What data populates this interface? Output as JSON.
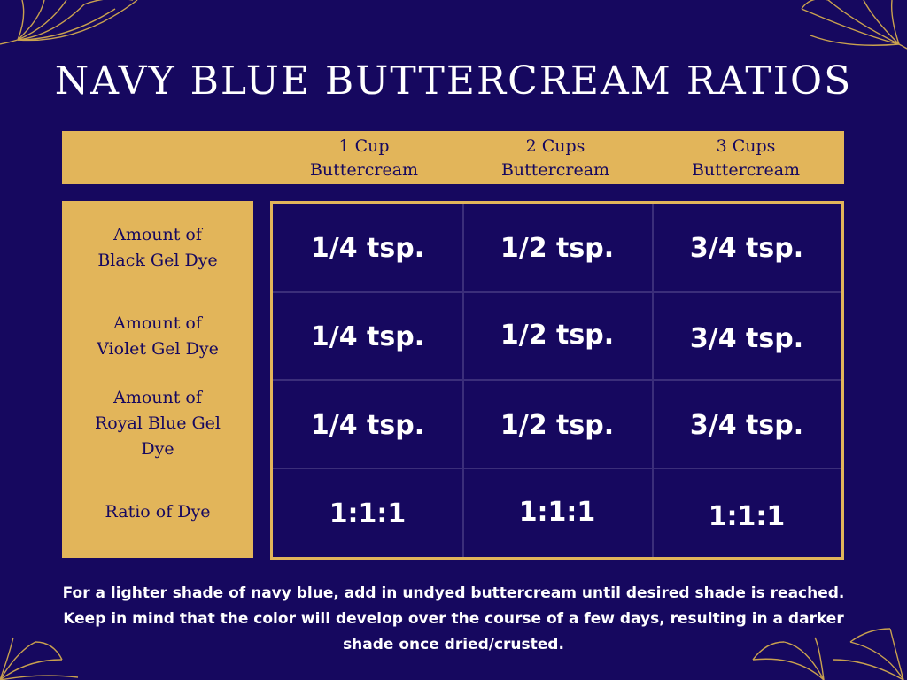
{
  "title": "NAVY BLUE BUTTERCREAM RATIOS",
  "columns": [
    "1 Cup\nButtercream",
    "2 Cups\nButtercream",
    "3 Cups\nButtercream"
  ],
  "rows": [
    {
      "label": "Amount of\nBlack Gel Dye",
      "cells": [
        "1/4 tsp.",
        "1/2 tsp.",
        "3/4 tsp."
      ]
    },
    {
      "label": "Amount of\nViolet Gel Dye",
      "cells": [
        "1/4 tsp.",
        "1/2 tsp.",
        "3/4 tsp."
      ]
    },
    {
      "label": "Amount of\nRoyal Blue Gel\nDye",
      "cells": [
        "1/4 tsp.",
        "1/2 tsp.",
        "3/4 tsp."
      ]
    },
    {
      "label": "Ratio of Dye",
      "cells": [
        "1:1:1",
        "1:1:1",
        "1:1:1"
      ]
    }
  ],
  "note": "For a lighter shade of navy blue, add in undyed buttercream until desired shade is reached. Keep in mind that the color will develop over the course of a few days, resulting in a darker shade once dried/crusted.",
  "colors": {
    "background": "#16085f",
    "gold": "#e2b55a",
    "text": "#ffffff",
    "grid_line": "#3b2e7a"
  },
  "decorations": [
    "ginkgo-leaf-icon",
    "ginkgo-leaf-icon",
    "ginkgo-leaf-icon",
    "ginkgo-leaf-icon"
  ]
}
